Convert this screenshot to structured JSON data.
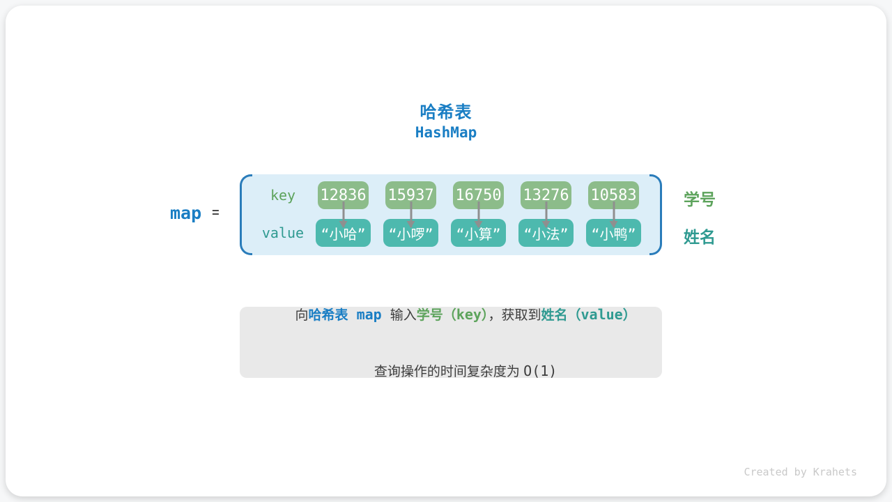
{
  "colors": {
    "accent_blue": "#1a7ec4",
    "bracket_blue": "#2a7cba",
    "panel_bg": "#dceef8",
    "key_box_green": "#8cbc8a",
    "value_box_teal": "#4db9ae",
    "key_text_green": "#5da35c",
    "value_text_teal": "#2f9a91",
    "note_bg": "#e9e9e9",
    "text_dark": "#3d3d3d",
    "arrow_gray": "#8f8f8f",
    "credit_gray": "#c9c9c9"
  },
  "header": {
    "title": "哈希表",
    "subtitle": "HashMap"
  },
  "map": {
    "name": "map",
    "equals": "="
  },
  "hash_table": {
    "key_label": "key",
    "value_label": "value",
    "entries": [
      {
        "key": "12836",
        "value": "“小哈”"
      },
      {
        "key": "15937",
        "value": "“小啰”"
      },
      {
        "key": "16750",
        "value": "“小算”"
      },
      {
        "key": "13276",
        "value": "“小法”"
      },
      {
        "key": "10583",
        "value": "“小鸭”"
      }
    ],
    "side_labels": {
      "keys": "学号",
      "values": "姓名"
    }
  },
  "note": {
    "line1": [
      {
        "text": "向"
      },
      {
        "text": "哈希表"
      },
      {
        "text": " map "
      },
      {
        "text": "输入"
      },
      {
        "text": "学号"
      },
      {
        "text": "（"
      },
      {
        "text": "key"
      },
      {
        "text": "）"
      },
      {
        "text": "，获取到"
      },
      {
        "text": "姓名"
      },
      {
        "text": "（"
      },
      {
        "text": "value"
      },
      {
        "text": "）"
      }
    ],
    "line2_text": "查询操作的时间复杂度为 ",
    "line2_code": "O(1)"
  },
  "credit": "Created by Krahets"
}
